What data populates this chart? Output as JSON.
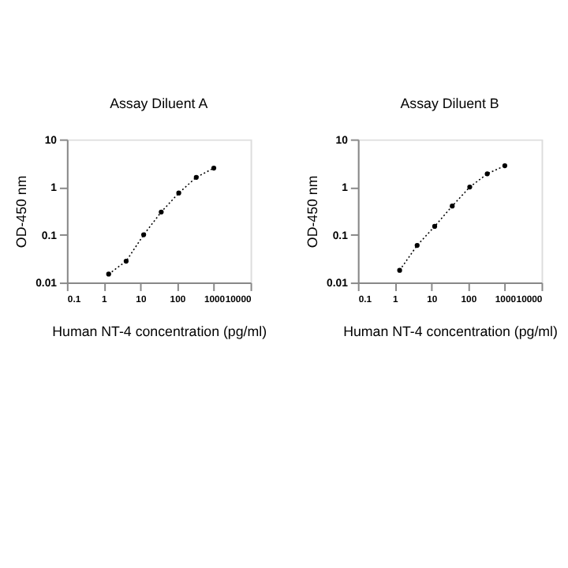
{
  "chart_data": [
    {
      "type": "line",
      "title": "Assay Diluent A",
      "xlabel": "Human NT-4  concentration (pg/ml)",
      "ylabel": "OD-450 nm",
      "log": "xy",
      "xlim": [
        0.1,
        10000
      ],
      "xticks": [
        0.1,
        1,
        10,
        100,
        1000,
        10000
      ],
      "ylim": [
        0.01,
        10
      ],
      "yticks": [
        0.01,
        0.1,
        1,
        10
      ],
      "marker": "circle",
      "line_style": "dotted",
      "grid": false,
      "series": [
        {
          "color": "#000000",
          "x": [
            1.37,
            4.1,
            12.3,
            37,
            111,
            333,
            1000
          ],
          "values": [
            0.015,
            0.028,
            0.1,
            0.3,
            0.75,
            1.6,
            2.5
          ]
        }
      ]
    },
    {
      "type": "line",
      "title": "Assay Diluent B",
      "xlabel": "Human NT-4  concentration (pg/ml)",
      "ylabel": "OD-450 nm",
      "log": "xy",
      "xlim": [
        0.1,
        10000
      ],
      "xticks": [
        0.1,
        1,
        10,
        100,
        1000,
        10000
      ],
      "ylim": [
        0.01,
        10
      ],
      "yticks": [
        0.01,
        0.1,
        1,
        10
      ],
      "marker": "circle",
      "line_style": "dotted",
      "grid": false,
      "series": [
        {
          "color": "#000000",
          "x": [
            1.37,
            4.1,
            12.3,
            37,
            111,
            333,
            1000
          ],
          "values": [
            0.018,
            0.06,
            0.15,
            0.4,
            1.0,
            1.9,
            2.8
          ]
        }
      ]
    }
  ]
}
